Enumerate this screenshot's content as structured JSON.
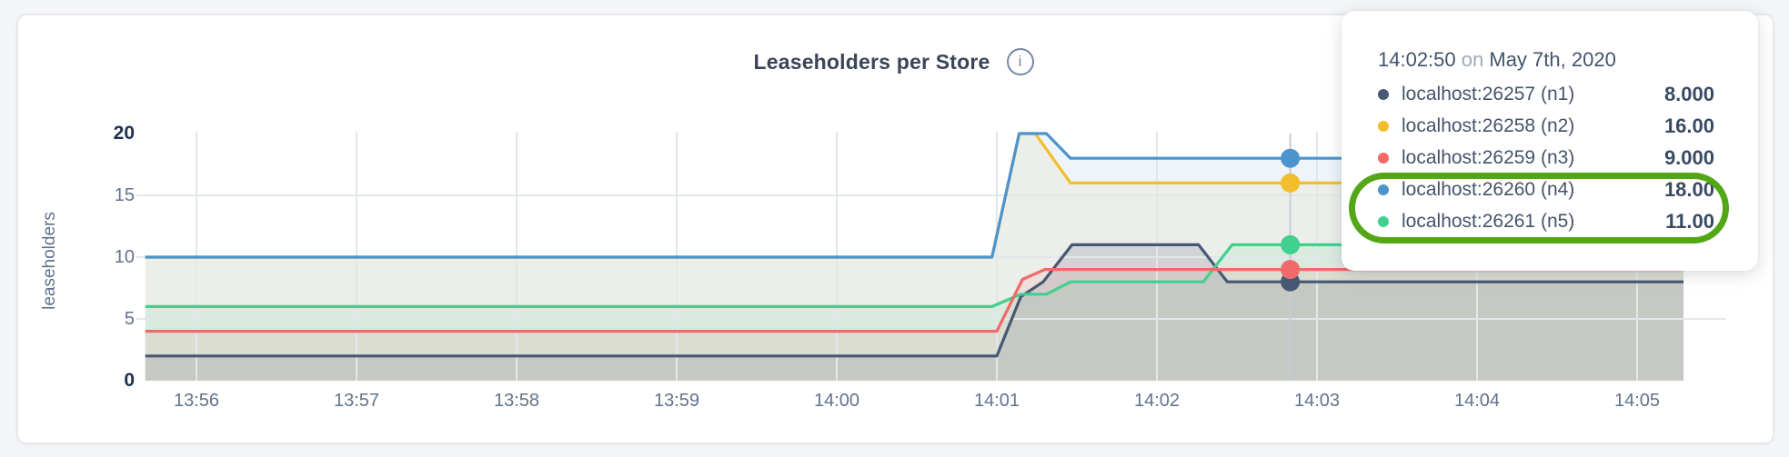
{
  "header": {
    "title": "Leaseholders per Store",
    "info_glyph": "i"
  },
  "chart_data": {
    "type": "area",
    "title": "Leaseholders per Store",
    "ylabel": "leaseholders",
    "xlabel": "",
    "x_ticks": [
      "13:56",
      "13:57",
      "13:58",
      "13:59",
      "14:00",
      "14:01",
      "14:02",
      "14:03",
      "14:04",
      "14:05"
    ],
    "y_ticks": [
      0,
      5,
      10,
      15,
      20
    ],
    "y_grid": [
      5,
      10,
      15
    ],
    "ylim": [
      0,
      20
    ],
    "xlim_minutes_from_1356": [
      -0.32,
      9.55
    ],
    "x_unit": "minutes after 13:56",
    "grid": true,
    "legend_position": "tooltip-overlay",
    "series": [
      {
        "id": "n1",
        "name": "localhost:26257 (n1)",
        "color": "#475872",
        "fill_opacity": 0.16,
        "points": [
          [
            -0.32,
            2
          ],
          [
            5.0,
            2
          ],
          [
            5.15,
            6.8
          ],
          [
            5.29,
            8
          ],
          [
            5.47,
            11
          ],
          [
            6.26,
            11
          ],
          [
            6.44,
            8
          ],
          [
            9.29,
            8
          ]
        ]
      },
      {
        "id": "n2",
        "name": "localhost:26258 (n2)",
        "color": "#f2be2c",
        "fill_opacity": 0.09,
        "points": [
          [
            -0.32,
            10
          ],
          [
            4.97,
            10
          ],
          [
            5.14,
            20
          ],
          [
            5.24,
            20
          ],
          [
            5.46,
            16
          ],
          [
            9.29,
            16
          ]
        ]
      },
      {
        "id": "n3",
        "name": "localhost:26259 (n3)",
        "color": "#f16969",
        "fill_opacity": 0.1,
        "points": [
          [
            -0.32,
            4
          ],
          [
            5.0,
            4
          ],
          [
            5.16,
            8.2
          ],
          [
            5.3,
            9
          ],
          [
            9.29,
            9
          ]
        ]
      },
      {
        "id": "n4",
        "name": "localhost:26260 (n4)",
        "color": "#4d93cc",
        "fill_opacity": 0.1,
        "points": [
          [
            -0.32,
            10
          ],
          [
            4.97,
            10
          ],
          [
            5.14,
            20
          ],
          [
            5.31,
            20
          ],
          [
            5.46,
            18
          ],
          [
            9.29,
            18
          ]
        ]
      },
      {
        "id": "n5",
        "name": "localhost:26261 (n5)",
        "color": "#41d08e",
        "fill_opacity": 0.11,
        "points": [
          [
            -0.32,
            6
          ],
          [
            4.97,
            6
          ],
          [
            5.15,
            7
          ],
          [
            5.31,
            7
          ],
          [
            5.46,
            8
          ],
          [
            6.29,
            8
          ],
          [
            6.47,
            11
          ],
          [
            9.29,
            11
          ]
        ]
      }
    ],
    "hover": {
      "t_minutes": 6.833,
      "time_label": "14:02:50",
      "values": {
        "n1": 8,
        "n2": 16,
        "n3": 9,
        "n4": 18,
        "n5": 11
      }
    }
  },
  "tooltip": {
    "time": "14:02:50",
    "connector": "on",
    "date": "May 7th, 2020",
    "rows": [
      {
        "label": "localhost:26257 (n1)",
        "value": "8.000",
        "color": "#475872"
      },
      {
        "label": "localhost:26258 (n2)",
        "value": "16.00",
        "color": "#f2be2c"
      },
      {
        "label": "localhost:26259 (n3)",
        "value": "9.000",
        "color": "#f16969"
      },
      {
        "label": "localhost:26260 (n4)",
        "value": "18.00",
        "color": "#4d93cc"
      },
      {
        "label": "localhost:26261 (n5)",
        "value": "11.00",
        "color": "#41d08e"
      }
    ],
    "annotation": {
      "color": "#53a716",
      "highlighted_rows": [
        "localhost:26260 (n4)",
        "localhost:26261 (n5)"
      ]
    }
  }
}
